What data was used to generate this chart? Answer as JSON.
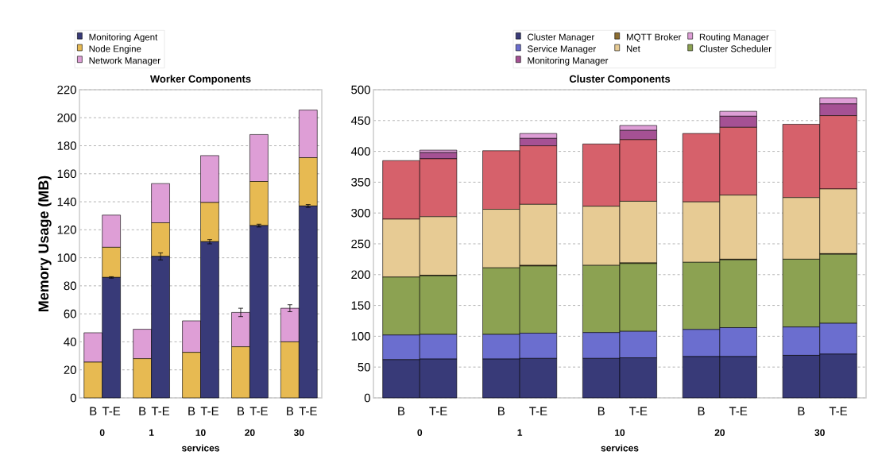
{
  "chart_data": [
    {
      "type": "bar",
      "title": "Worker Components",
      "xlabel": "services",
      "ylabel": "Memory Usage (MB)",
      "stacked": true,
      "categories": [
        "B",
        "T-E",
        "B",
        "T-E",
        "B",
        "T-E",
        "B",
        "T-E",
        "B",
        "T-E"
      ],
      "annotations": [
        "0",
        "1",
        "10",
        "20",
        "30"
      ],
      "ylim": [
        0,
        220
      ],
      "yticks": [
        0,
        20,
        40,
        60,
        80,
        100,
        120,
        140,
        160,
        180,
        200,
        220
      ],
      "grid": "y",
      "legend": "top left",
      "series": [
        {
          "name": "Monitoring Agent",
          "color": "#383a78",
          "values": [
            0,
            86,
            0,
            101,
            0,
            111.5,
            0,
            123,
            0,
            137
          ],
          "errors": [
            null,
            0.5,
            null,
            2.5,
            null,
            1.5,
            null,
            1,
            null,
            1
          ]
        },
        {
          "name": "Node Engine",
          "color": "#e7ba52",
          "values": [
            25.5,
            21.5,
            28,
            24,
            32.5,
            28,
            36.5,
            31.5,
            40,
            34.5
          ]
        },
        {
          "name": "Network Manager",
          "color": "#de9ed6",
          "values": [
            21,
            23,
            21,
            28,
            22.5,
            33.5,
            24.5,
            33.5,
            24,
            34
          ],
          "errors": [
            null,
            null,
            null,
            null,
            null,
            null,
            3,
            null,
            2.5,
            null
          ]
        }
      ]
    },
    {
      "type": "bar",
      "title": "Cluster Components",
      "xlabel": "services",
      "stacked": true,
      "categories": [
        "B",
        "T-E",
        "B",
        "T-E",
        "B",
        "T-E",
        "B",
        "T-E",
        "B",
        "T-E"
      ],
      "annotations": [
        "0",
        "1",
        "10",
        "20",
        "30"
      ],
      "ylim": [
        0,
        500
      ],
      "yticks": [
        0,
        50,
        100,
        150,
        200,
        250,
        300,
        350,
        400,
        450,
        500
      ],
      "grid": "y",
      "legend": "top",
      "series": [
        {
          "name": "Cluster Manager",
          "color": "#383a78",
          "values": [
            62,
            63,
            63,
            64,
            64,
            65,
            67,
            67,
            69,
            71
          ]
        },
        {
          "name": "Service Manager",
          "color": "#6b6ecf",
          "values": [
            40,
            40,
            40,
            41,
            42,
            43,
            44,
            47,
            46,
            50
          ]
        },
        {
          "name": "Cluster Scheduler",
          "color": "#8ca252",
          "values": [
            94,
            95,
            108,
            109,
            109,
            110,
            109,
            110,
            110,
            112
          ]
        },
        {
          "name": "MQTT Broker",
          "color": "#8c6d31",
          "values": [
            0,
            1,
            0,
            1,
            0,
            1,
            0,
            1,
            0,
            1
          ]
        },
        {
          "name": "Net",
          "color": "#e7cb94",
          "values": [
            94,
            95,
            95,
            99,
            96,
            100,
            98,
            104,
            100,
            105
          ]
        },
        {
          "color": "#d6616b",
          "values": [
            95,
            94,
            95,
            95,
            101,
            100,
            111,
            110,
            119,
            119
          ]
        },
        {
          "name": "Monitoring Manager",
          "color": "#a55194",
          "values": [
            0,
            10,
            0,
            12,
            0,
            15,
            0,
            18,
            0,
            19
          ]
        },
        {
          "name": "Routing Manager",
          "color": "#de9ed6",
          "values": [
            0,
            4,
            0,
            8,
            0,
            8,
            0,
            8,
            0,
            10
          ]
        }
      ]
    }
  ]
}
